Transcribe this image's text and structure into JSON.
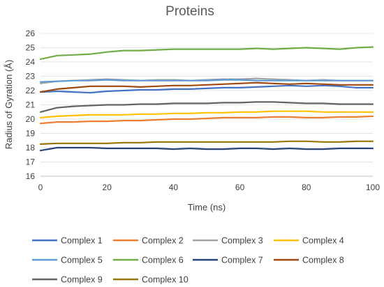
{
  "chart_data": {
    "type": "line",
    "title": "Proteins",
    "xlabel": "Time (ns)",
    "ylabel": "Radius of Gyration (Å)",
    "xlim": [
      0,
      100
    ],
    "ylim": [
      16,
      26
    ],
    "xticks": [
      "0",
      "20",
      "40",
      "60",
      "80",
      "100"
    ],
    "yticks": [
      "16",
      "17",
      "18",
      "19",
      "20",
      "21",
      "22",
      "23",
      "24",
      "25",
      "26"
    ],
    "grid": "horizontal",
    "legend_position": "bottom",
    "x": [
      0,
      5,
      10,
      15,
      20,
      25,
      30,
      35,
      40,
      45,
      50,
      55,
      60,
      65,
      70,
      75,
      80,
      85,
      90,
      95,
      100
    ],
    "series": [
      {
        "name": "Complex 1",
        "color": "#4472c4",
        "values": [
          21.9,
          21.95,
          21.9,
          21.85,
          21.95,
          22.0,
          22.05,
          22.05,
          22.1,
          22.1,
          22.15,
          22.2,
          22.2,
          22.25,
          22.3,
          22.35,
          22.3,
          22.35,
          22.3,
          22.2,
          22.2
        ]
      },
      {
        "name": "Complex 2",
        "color": "#ed7d31",
        "values": [
          19.7,
          19.8,
          19.8,
          19.85,
          19.85,
          19.9,
          19.9,
          19.95,
          20.0,
          20.0,
          20.05,
          20.1,
          20.1,
          20.1,
          20.15,
          20.15,
          20.1,
          20.1,
          20.15,
          20.15,
          20.2
        ]
      },
      {
        "name": "Complex 3",
        "color": "#a5a5a5",
        "values": [
          22.5,
          22.65,
          22.7,
          22.75,
          22.8,
          22.75,
          22.7,
          22.75,
          22.75,
          22.7,
          22.75,
          22.8,
          22.8,
          22.85,
          22.8,
          22.75,
          22.7,
          22.75,
          22.7,
          22.7,
          22.7
        ]
      },
      {
        "name": "Complex 4",
        "color": "#ffc000",
        "values": [
          20.1,
          20.2,
          20.25,
          20.3,
          20.3,
          20.3,
          20.35,
          20.35,
          20.4,
          20.4,
          20.45,
          20.45,
          20.5,
          20.5,
          20.55,
          20.55,
          20.55,
          20.5,
          20.5,
          20.5,
          20.5
        ]
      },
      {
        "name": "Complex 5",
        "color": "#5b9bd5",
        "values": [
          22.6,
          22.65,
          22.7,
          22.7,
          22.75,
          22.7,
          22.7,
          22.7,
          22.7,
          22.7,
          22.7,
          22.75,
          22.75,
          22.7,
          22.7,
          22.7,
          22.7,
          22.7,
          22.7,
          22.7,
          22.7
        ]
      },
      {
        "name": "Complex 6",
        "color": "#70ad47",
        "values": [
          24.2,
          24.45,
          24.5,
          24.55,
          24.7,
          24.8,
          24.8,
          24.85,
          24.9,
          24.9,
          24.9,
          24.9,
          24.9,
          24.95,
          24.9,
          24.95,
          25.0,
          24.95,
          24.9,
          25.0,
          25.05
        ]
      },
      {
        "name": "Complex 7",
        "color": "#264478",
        "values": [
          17.8,
          18.0,
          18.0,
          18.0,
          17.95,
          17.95,
          17.95,
          17.95,
          17.9,
          17.95,
          17.9,
          17.9,
          17.95,
          17.95,
          17.9,
          17.95,
          17.9,
          17.9,
          17.95,
          17.95,
          17.95
        ]
      },
      {
        "name": "Complex 8",
        "color": "#9e480e",
        "values": [
          21.9,
          22.1,
          22.2,
          22.3,
          22.3,
          22.3,
          22.25,
          22.3,
          22.35,
          22.35,
          22.4,
          22.45,
          22.5,
          22.55,
          22.5,
          22.45,
          22.5,
          22.45,
          22.4,
          22.4,
          22.4
        ]
      },
      {
        "name": "Complex 9",
        "color": "#636363",
        "values": [
          20.5,
          20.8,
          20.9,
          20.95,
          21.0,
          21.0,
          21.05,
          21.05,
          21.1,
          21.1,
          21.1,
          21.15,
          21.15,
          21.2,
          21.2,
          21.15,
          21.1,
          21.1,
          21.05,
          21.05,
          21.05
        ]
      },
      {
        "name": "Complex 10",
        "color": "#997300",
        "values": [
          18.25,
          18.3,
          18.3,
          18.3,
          18.3,
          18.35,
          18.35,
          18.4,
          18.4,
          18.4,
          18.4,
          18.4,
          18.4,
          18.4,
          18.4,
          18.45,
          18.45,
          18.4,
          18.4,
          18.45,
          18.45
        ]
      }
    ]
  }
}
